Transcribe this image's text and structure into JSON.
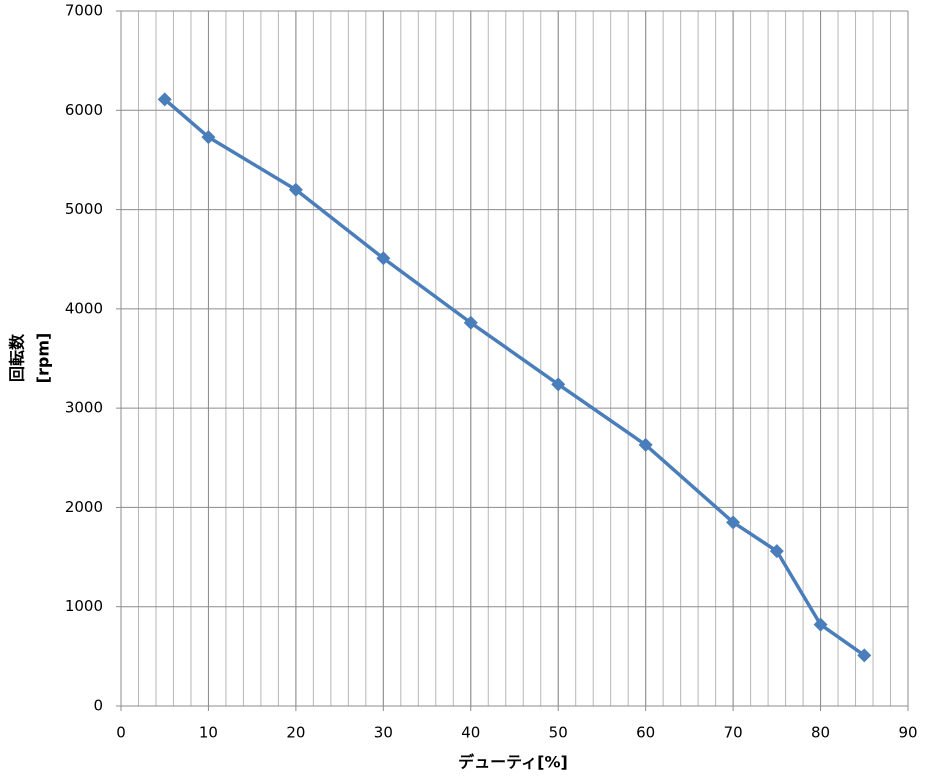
{
  "chart_data": {
    "type": "line",
    "xlabel": "デューティ[%]",
    "ylabel": [
      "回転数",
      "[rpm]"
    ],
    "x": [
      5,
      10,
      20,
      30,
      40,
      50,
      60,
      70,
      75,
      80,
      85
    ],
    "series": [
      {
        "color": "#4a7ebb",
        "marker": "diamond",
        "values": [
          6110,
          5730,
          5200,
          4510,
          3860,
          3240,
          2630,
          1850,
          1560,
          820,
          510
        ]
      }
    ],
    "xlim": [
      0,
      90
    ],
    "xticks": [
      0,
      10,
      20,
      30,
      40,
      50,
      60,
      70,
      80,
      90
    ],
    "x_grid_step": 2,
    "ylim": [
      0,
      7000
    ],
    "yticks": [
      0,
      1000,
      2000,
      3000,
      4000,
      5000,
      6000,
      7000
    ],
    "grid": true
  }
}
